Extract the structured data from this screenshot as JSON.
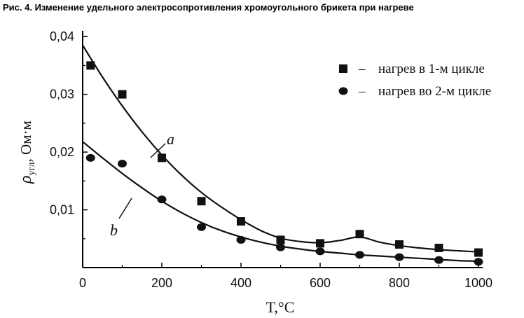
{
  "figure_title": "Рис. 4. Изменение удельного электросопротивления хромоугольного брикета при нагреве",
  "chart_data": {
    "type": "scatter",
    "title": "Рис. 4. Изменение удельного электросопротивления хромоугольного брикета при нагреве",
    "xlabel": "T,°C",
    "ylabel_symbol": "ρ",
    "ylabel_sub": "угл",
    "ylabel_unit": ", Ом·м",
    "xlim": [
      0,
      1000
    ],
    "ylim": [
      0,
      0.041
    ],
    "xticks": [
      "0",
      "200",
      "400",
      "600",
      "800",
      "1000"
    ],
    "yticks": [
      "0,01",
      "0,02",
      "0,03",
      "0,04"
    ],
    "grid": false,
    "legend_position": "top-right",
    "series": [
      {
        "name": "нагрев в 1-м цикле",
        "marker": "square",
        "curve_label": "a",
        "x": [
          20,
          100,
          200,
          300,
          400,
          500,
          600,
          700,
          800,
          900,
          1000
        ],
        "values": [
          0.035,
          0.03,
          0.019,
          0.0115,
          0.008,
          0.0048,
          0.0042,
          0.0058,
          0.004,
          0.0034,
          0.0026
        ],
        "trend_x": [
          0,
          50,
          100,
          150,
          200,
          250,
          300,
          350,
          400,
          450,
          500,
          550,
          600,
          650,
          700,
          750,
          800,
          850,
          900,
          950,
          1000
        ],
        "trend_y": [
          0.0385,
          0.033,
          0.028,
          0.0235,
          0.0195,
          0.016,
          0.013,
          0.0105,
          0.0083,
          0.0064,
          0.0051,
          0.0045,
          0.0043,
          0.0047,
          0.0053,
          0.0044,
          0.0038,
          0.0034,
          0.0031,
          0.0029,
          0.0027
        ]
      },
      {
        "name": "нагрев во 2-м цикле",
        "marker": "circle",
        "curve_label": "b",
        "x": [
          20,
          100,
          200,
          300,
          400,
          500,
          600,
          700,
          800,
          900,
          1000
        ],
        "values": [
          0.019,
          0.018,
          0.0118,
          0.007,
          0.0048,
          0.0035,
          0.0028,
          0.0022,
          0.0018,
          0.0013,
          0.001
        ],
        "trend_x": [
          0,
          50,
          100,
          150,
          200,
          250,
          300,
          350,
          400,
          450,
          500,
          550,
          600,
          650,
          700,
          750,
          800,
          850,
          900,
          950,
          1000
        ],
        "trend_y": [
          0.0218,
          0.019,
          0.0163,
          0.0138,
          0.0115,
          0.0095,
          0.0078,
          0.0064,
          0.0053,
          0.0044,
          0.0037,
          0.0032,
          0.0028,
          0.0025,
          0.0022,
          0.002,
          0.0018,
          0.0016,
          0.0014,
          0.0012,
          0.0011
        ]
      }
    ]
  }
}
